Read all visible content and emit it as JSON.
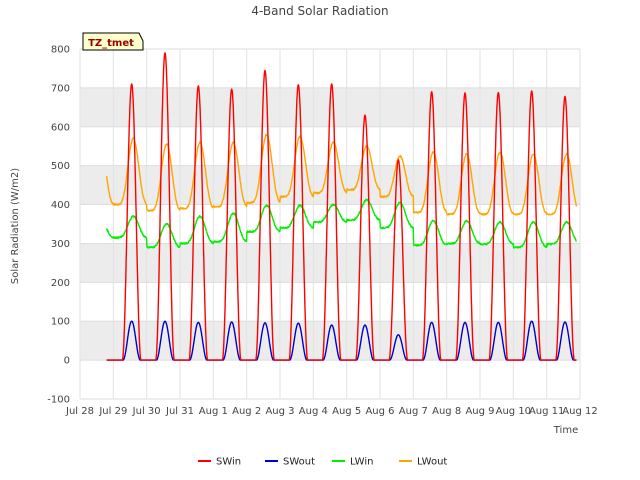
{
  "chart_data": {
    "type": "line",
    "title": "4-Band Solar Radiation",
    "xlabel": "Time",
    "ylabel": "Solar Radiation (W/m2)",
    "tag_label": "TZ_tmet",
    "xlim": [
      "2025-07-28",
      "2025-08-12"
    ],
    "ylim": [
      -100,
      800
    ],
    "x_ticks": [
      "Jul 28",
      "Jul 29",
      "Jul 30",
      "Jul 31",
      "Aug 1",
      "Aug 2",
      "Aug 3",
      "Aug 4",
      "Aug 5",
      "Aug 6",
      "Aug 7",
      "Aug 8",
      "Aug 9",
      "Aug 10",
      "Aug 11",
      "Aug 12"
    ],
    "y_ticks": [
      -100,
      0,
      100,
      200,
      300,
      400,
      500,
      600,
      700,
      800
    ],
    "grid": true,
    "legend_position": "bottom",
    "series": [
      {
        "name": "SWin",
        "color": "#ff0000",
        "daily_peaks": [
          {
            "date": "2025-07-29",
            "value": 710
          },
          {
            "date": "2025-07-30",
            "value": 790
          },
          {
            "date": "2025-07-31",
            "value": 705
          },
          {
            "date": "2025-08-01",
            "value": 697
          },
          {
            "date": "2025-08-02",
            "value": 745
          },
          {
            "date": "2025-08-03",
            "value": 708
          },
          {
            "date": "2025-08-04",
            "value": 710
          },
          {
            "date": "2025-08-05",
            "value": 630
          },
          {
            "date": "2025-08-06",
            "value": 515
          },
          {
            "date": "2025-08-07",
            "value": 690
          },
          {
            "date": "2025-08-08",
            "value": 687
          },
          {
            "date": "2025-08-09",
            "value": 688
          },
          {
            "date": "2025-08-10",
            "value": 692
          },
          {
            "date": "2025-08-11",
            "value": 678
          }
        ]
      },
      {
        "name": "SWout",
        "color": "#0000cc",
        "daily_peaks": [
          {
            "date": "2025-07-29",
            "value": 100
          },
          {
            "date": "2025-07-30",
            "value": 100
          },
          {
            "date": "2025-07-31",
            "value": 97
          },
          {
            "date": "2025-08-01",
            "value": 98
          },
          {
            "date": "2025-08-02",
            "value": 96
          },
          {
            "date": "2025-08-03",
            "value": 95
          },
          {
            "date": "2025-08-04",
            "value": 90
          },
          {
            "date": "2025-08-05",
            "value": 90
          },
          {
            "date": "2025-08-06",
            "value": 65
          },
          {
            "date": "2025-08-07",
            "value": 97
          },
          {
            "date": "2025-08-08",
            "value": 97
          },
          {
            "date": "2025-08-09",
            "value": 97
          },
          {
            "date": "2025-08-10",
            "value": 100
          },
          {
            "date": "2025-08-11",
            "value": 98
          }
        ]
      },
      {
        "name": "LWin",
        "color": "#00ee00",
        "daily": [
          {
            "date": "2025-07-29",
            "low": 315,
            "high": 370
          },
          {
            "date": "2025-07-30",
            "low": 290,
            "high": 350
          },
          {
            "date": "2025-07-31",
            "low": 300,
            "high": 370
          },
          {
            "date": "2025-08-01",
            "low": 305,
            "high": 378
          },
          {
            "date": "2025-08-02",
            "low": 330,
            "high": 398
          },
          {
            "date": "2025-08-03",
            "low": 340,
            "high": 398
          },
          {
            "date": "2025-08-04",
            "low": 355,
            "high": 400
          },
          {
            "date": "2025-08-05",
            "low": 360,
            "high": 412
          },
          {
            "date": "2025-08-06",
            "low": 340,
            "high": 405
          },
          {
            "date": "2025-08-07",
            "low": 295,
            "high": 358
          },
          {
            "date": "2025-08-08",
            "low": 300,
            "high": 358
          },
          {
            "date": "2025-08-09",
            "low": 298,
            "high": 355
          },
          {
            "date": "2025-08-10",
            "low": 290,
            "high": 355
          },
          {
            "date": "2025-08-11",
            "low": 298,
            "high": 355
          }
        ]
      },
      {
        "name": "LWout",
        "color": "#ffa500",
        "daily": [
          {
            "date": "2025-07-29",
            "low": 400,
            "high": 570
          },
          {
            "date": "2025-07-30",
            "low": 385,
            "high": 555
          },
          {
            "date": "2025-07-31",
            "low": 390,
            "high": 560
          },
          {
            "date": "2025-08-01",
            "low": 395,
            "high": 560
          },
          {
            "date": "2025-08-02",
            "low": 405,
            "high": 580
          },
          {
            "date": "2025-08-03",
            "low": 420,
            "high": 575
          },
          {
            "date": "2025-08-04",
            "low": 430,
            "high": 560
          },
          {
            "date": "2025-08-05",
            "low": 438,
            "high": 550
          },
          {
            "date": "2025-08-06",
            "low": 420,
            "high": 525
          },
          {
            "date": "2025-08-07",
            "low": 380,
            "high": 535
          },
          {
            "date": "2025-08-08",
            "low": 375,
            "high": 530
          },
          {
            "date": "2025-08-09",
            "low": 375,
            "high": 535
          },
          {
            "date": "2025-08-10",
            "low": 375,
            "high": 530
          },
          {
            "date": "2025-08-11",
            "low": 375,
            "high": 530
          }
        ]
      }
    ]
  }
}
